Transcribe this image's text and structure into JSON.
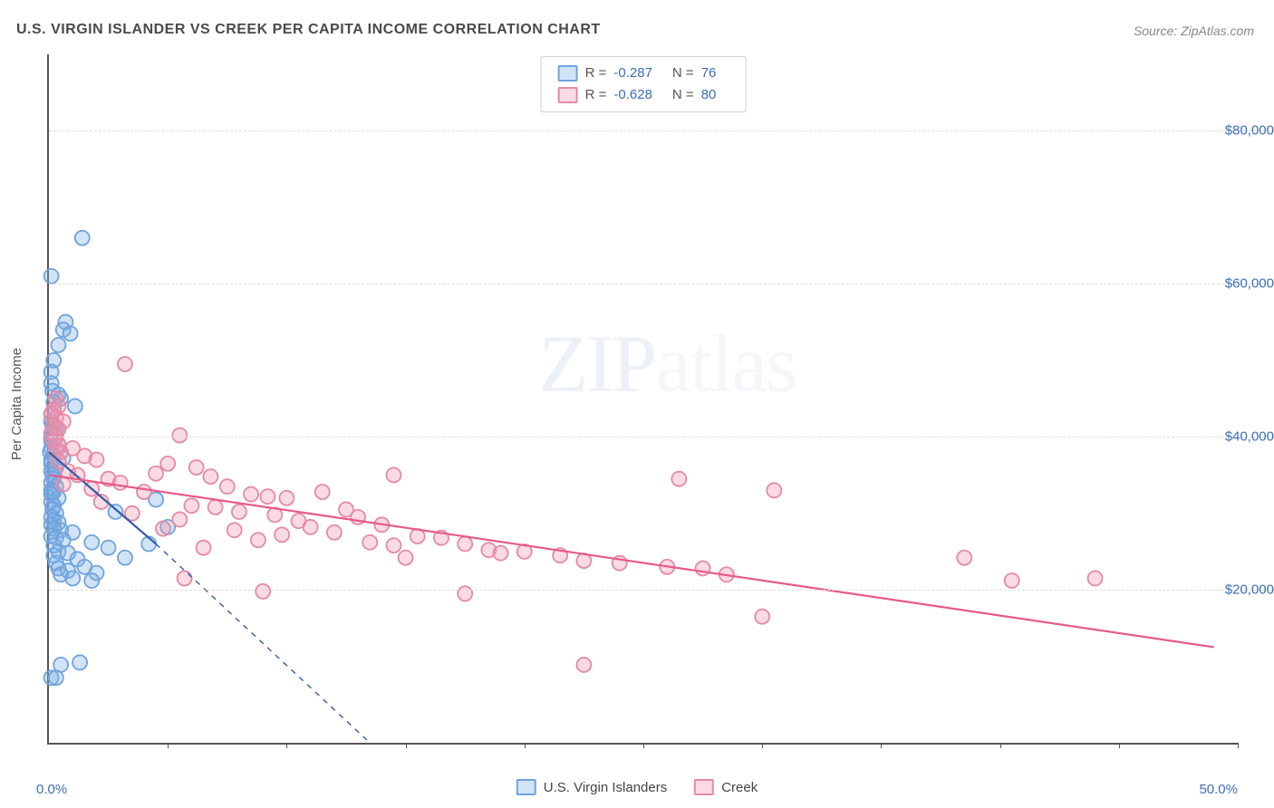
{
  "title": "U.S. VIRGIN ISLANDER VS CREEK PER CAPITA INCOME CORRELATION CHART",
  "source": "Source: ZipAtlas.com",
  "y_axis_label": "Per Capita Income",
  "x_axis": {
    "min_label": "0.0%",
    "max_label": "50.0%",
    "min": 0,
    "max": 50,
    "tick_positions": [
      0,
      5,
      10,
      15,
      20,
      25,
      30,
      35,
      40,
      45,
      50
    ]
  },
  "y_axis": {
    "min": 0,
    "max": 90000,
    "ticks": [
      {
        "value": 20000,
        "label": "$20,000"
      },
      {
        "value": 40000,
        "label": "$40,000"
      },
      {
        "value": 60000,
        "label": "$60,000"
      },
      {
        "value": 80000,
        "label": "$80,000"
      }
    ]
  },
  "series": [
    {
      "name": "U.S. Virgin Islanders",
      "fill": "rgba(125,175,230,0.35)",
      "stroke": "#6fa3dd",
      "swatch_fill": "rgba(125,175,230,0.35)",
      "swatch_border": "#6fa3dd",
      "R": "-0.287",
      "N": "76",
      "regression": {
        "solid_x1": 0,
        "solid_y1": 38000,
        "solid_x2": 4.5,
        "solid_y2": 26000,
        "dashed_x2": 13.5,
        "dashed_y2": 0
      },
      "line_color": "#2f5da8",
      "points": [
        [
          0.1,
          61000
        ],
        [
          0.1,
          8500
        ],
        [
          0.3,
          8500
        ],
        [
          1.4,
          66000
        ],
        [
          0.7,
          55000
        ],
        [
          0.6,
          54000
        ],
        [
          0.9,
          53500
        ],
        [
          0.4,
          52000
        ],
        [
          0.2,
          50000
        ],
        [
          0.1,
          48500
        ],
        [
          0.1,
          47000
        ],
        [
          0.15,
          46000
        ],
        [
          0.4,
          45500
        ],
        [
          0.5,
          45000
        ],
        [
          1.1,
          44000
        ],
        [
          0.2,
          44500
        ],
        [
          0.1,
          43000
        ],
        [
          0.1,
          42000
        ],
        [
          0.15,
          41500
        ],
        [
          0.3,
          41000
        ],
        [
          0.2,
          40500
        ],
        [
          0.1,
          40000
        ],
        [
          0.1,
          39500
        ],
        [
          0.4,
          39000
        ],
        [
          0.1,
          38500
        ],
        [
          0.05,
          38000
        ],
        [
          0.2,
          37500
        ],
        [
          0.1,
          37000
        ],
        [
          0.6,
          37200
        ],
        [
          0.1,
          36500
        ],
        [
          0.3,
          36000
        ],
        [
          0.1,
          35500
        ],
        [
          0.15,
          35000
        ],
        [
          0.2,
          34500
        ],
        [
          0.1,
          34000
        ],
        [
          0.3,
          33500
        ],
        [
          0.1,
          33000
        ],
        [
          0.2,
          32800
        ],
        [
          0.1,
          32500
        ],
        [
          0.4,
          32000
        ],
        [
          4.5,
          31800
        ],
        [
          0.1,
          31500
        ],
        [
          0.2,
          31000
        ],
        [
          0.15,
          30500
        ],
        [
          0.3,
          30000
        ],
        [
          2.8,
          30200
        ],
        [
          0.1,
          29500
        ],
        [
          0.2,
          29000
        ],
        [
          0.4,
          28800
        ],
        [
          0.1,
          28500
        ],
        [
          5.0,
          28200
        ],
        [
          0.2,
          28000
        ],
        [
          0.5,
          27800
        ],
        [
          1.0,
          27500
        ],
        [
          0.1,
          27000
        ],
        [
          0.3,
          26800
        ],
        [
          0.6,
          26500
        ],
        [
          1.8,
          26200
        ],
        [
          4.2,
          26000
        ],
        [
          0.2,
          25800
        ],
        [
          2.5,
          25500
        ],
        [
          0.4,
          25000
        ],
        [
          0.8,
          24800
        ],
        [
          0.2,
          24500
        ],
        [
          1.2,
          24000
        ],
        [
          3.2,
          24200
        ],
        [
          0.3,
          23500
        ],
        [
          1.5,
          23000
        ],
        [
          0.4,
          22800
        ],
        [
          0.8,
          22500
        ],
        [
          2.0,
          22200
        ],
        [
          0.5,
          22000
        ],
        [
          1.0,
          21500
        ],
        [
          1.8,
          21200
        ],
        [
          1.3,
          10500
        ],
        [
          0.5,
          10200
        ]
      ]
    },
    {
      "name": "Creek",
      "fill": "rgba(240,150,175,0.35)",
      "stroke": "#e58aa5",
      "swatch_fill": "rgba(240,150,175,0.35)",
      "swatch_border": "#e58aa5",
      "R": "-0.628",
      "N": "80",
      "regression": {
        "solid_x1": 0,
        "solid_y1": 35000,
        "solid_x2": 49,
        "solid_y2": 12500
      },
      "line_color": "#e65a87",
      "points": [
        [
          3.2,
          49500
        ],
        [
          0.3,
          45000
        ],
        [
          0.4,
          44000
        ],
        [
          0.2,
          43500
        ],
        [
          0.1,
          43000
        ],
        [
          0.3,
          42500
        ],
        [
          0.6,
          42000
        ],
        [
          0.2,
          41500
        ],
        [
          0.4,
          41000
        ],
        [
          0.1,
          40500
        ],
        [
          0.3,
          40000
        ],
        [
          5.5,
          40200
        ],
        [
          0.2,
          39500
        ],
        [
          0.4,
          39000
        ],
        [
          1.0,
          38500
        ],
        [
          0.3,
          38200
        ],
        [
          0.5,
          38000
        ],
        [
          1.5,
          37500
        ],
        [
          2.0,
          37000
        ],
        [
          0.4,
          36800
        ],
        [
          5.0,
          36500
        ],
        [
          6.2,
          36000
        ],
        [
          0.8,
          35500
        ],
        [
          4.5,
          35200
        ],
        [
          1.2,
          35000
        ],
        [
          6.8,
          34800
        ],
        [
          2.5,
          34500
        ],
        [
          14.5,
          35000
        ],
        [
          26.5,
          34500
        ],
        [
          3.0,
          34000
        ],
        [
          0.6,
          33800
        ],
        [
          7.5,
          33500
        ],
        [
          30.5,
          33000
        ],
        [
          1.8,
          33200
        ],
        [
          4.0,
          32800
        ],
        [
          8.5,
          32500
        ],
        [
          9.2,
          32200
        ],
        [
          10.0,
          32000
        ],
        [
          2.2,
          31500
        ],
        [
          11.5,
          32800
        ],
        [
          6.0,
          31000
        ],
        [
          7.0,
          30800
        ],
        [
          12.5,
          30500
        ],
        [
          8.0,
          30200
        ],
        [
          3.5,
          30000
        ],
        [
          9.5,
          29800
        ],
        [
          13.0,
          29500
        ],
        [
          5.5,
          29200
        ],
        [
          10.5,
          29000
        ],
        [
          14.0,
          28500
        ],
        [
          11.0,
          28200
        ],
        [
          4.8,
          28000
        ],
        [
          7.8,
          27800
        ],
        [
          12.0,
          27500
        ],
        [
          15.5,
          27000
        ],
        [
          16.5,
          26800
        ],
        [
          8.8,
          26500
        ],
        [
          13.5,
          26200
        ],
        [
          17.5,
          26000
        ],
        [
          14.5,
          25800
        ],
        [
          9.8,
          27200
        ],
        [
          6.5,
          25500
        ],
        [
          18.5,
          25200
        ],
        [
          20.0,
          25000
        ],
        [
          19.0,
          24800
        ],
        [
          21.5,
          24500
        ],
        [
          15.0,
          24200
        ],
        [
          22.5,
          23800
        ],
        [
          38.5,
          24200
        ],
        [
          24.0,
          23500
        ],
        [
          26.0,
          23000
        ],
        [
          27.5,
          22800
        ],
        [
          44.0,
          21500
        ],
        [
          40.5,
          21200
        ],
        [
          28.5,
          22000
        ],
        [
          5.7,
          21500
        ],
        [
          9.0,
          19800
        ],
        [
          30.0,
          16500
        ],
        [
          22.5,
          10200
        ],
        [
          17.5,
          19500
        ]
      ]
    }
  ],
  "marker_radius": 8,
  "marker_stroke_width": 1.8,
  "regression_line_width": 2.2,
  "watermark": {
    "strong": "ZIP",
    "light": "atlas"
  },
  "colors": {
    "title": "#4a4a4a",
    "axis": "#555",
    "grid": "#ddd",
    "value_text": "#3b6db5",
    "background": "#ffffff"
  }
}
